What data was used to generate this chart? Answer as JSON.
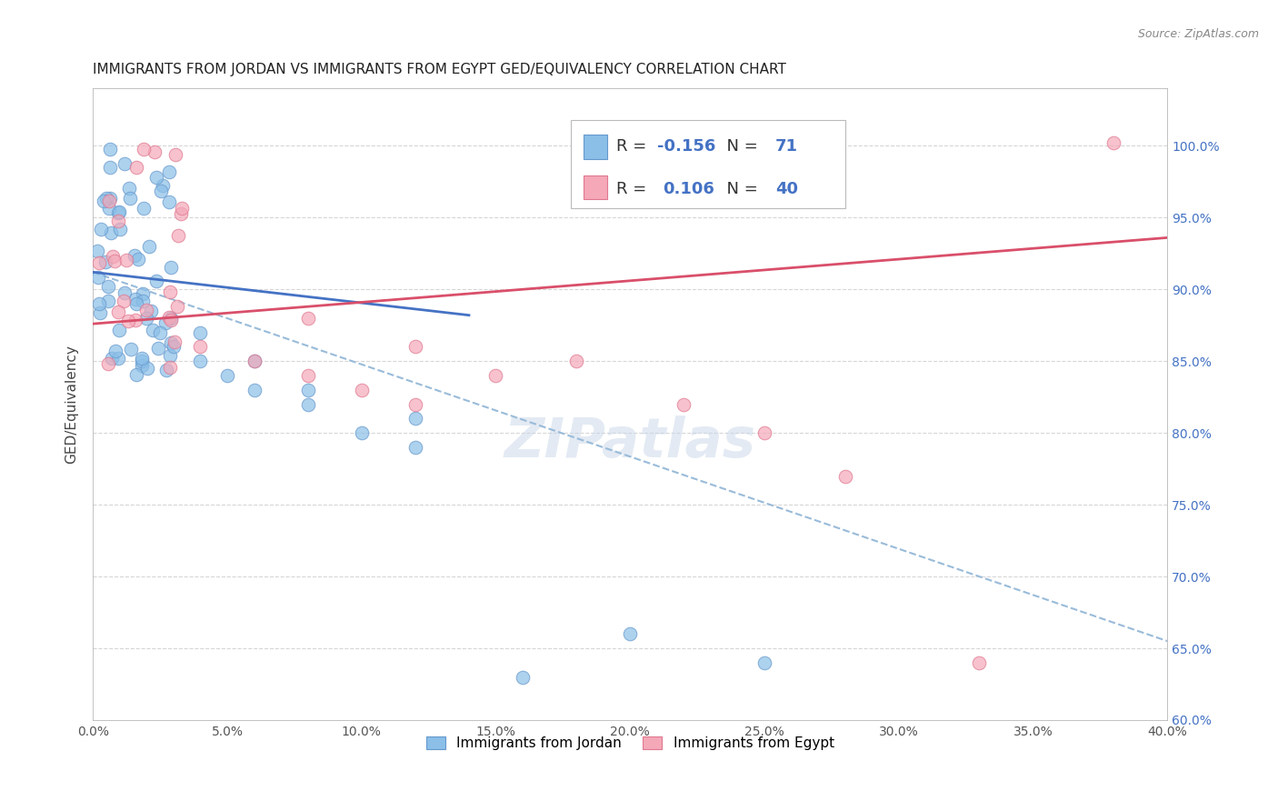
{
  "title": "IMMIGRANTS FROM JORDAN VS IMMIGRANTS FROM EGYPT GED/EQUIVALENCY CORRELATION CHART",
  "source": "Source: ZipAtlas.com",
  "ylabel": "GED/Equivalency",
  "xlim": [
    0.0,
    0.4
  ],
  "ylim": [
    0.6,
    1.04
  ],
  "xticks": [
    0.0,
    0.05,
    0.1,
    0.15,
    0.2,
    0.25,
    0.3,
    0.35,
    0.4
  ],
  "yticks": [
    0.6,
    0.65,
    0.7,
    0.75,
    0.8,
    0.85,
    0.9,
    0.95,
    1.0
  ],
  "ytick_labels_right": [
    "60.0%",
    "65.0%",
    "70.0%",
    "75.0%",
    "80.0%",
    "85.0%",
    "90.0%",
    "95.0%",
    "100.0%"
  ],
  "xtick_labels": [
    "0.0%",
    "5.0%",
    "10.0%",
    "15.0%",
    "20.0%",
    "25.0%",
    "30.0%",
    "35.0%",
    "40.0%"
  ],
  "jordan_color": "#8BBFE8",
  "egypt_color": "#F4A8B8",
  "jordan_edge_color": "#6699CC",
  "egypt_edge_color": "#E07890",
  "jordan_trend_color": "#4472C4",
  "egypt_trend_color": "#D94F6A",
  "dashed_trend_color": "#99BBD9",
  "legend_R_jordan": "-0.156",
  "legend_N_jordan": "71",
  "legend_R_egypt": "0.106",
  "legend_N_egypt": "40",
  "background_color": "#ffffff",
  "grid_color": "#cccccc",
  "title_fontsize": 11,
  "axis_label_fontsize": 11,
  "tick_fontsize": 10,
  "tick_color_right": "#4472C4",
  "watermark_text": "ZIPatlas",
  "jordan_label": "Immigrants from Jordan",
  "egypt_label": "Immigrants from Egypt"
}
